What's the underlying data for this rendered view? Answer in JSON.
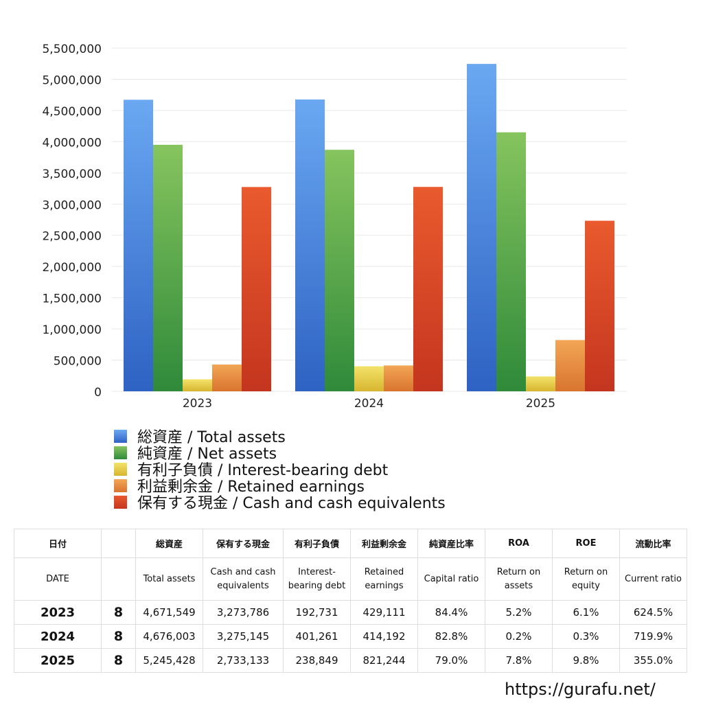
{
  "chart_data": {
    "type": "bar",
    "categories": [
      "2023",
      "2024",
      "2025"
    ],
    "series": [
      {
        "name": "総資産 / Total assets",
        "values": [
          4671549,
          4676003,
          5245428
        ],
        "color_top": "#6aa8f2",
        "color_bottom": "#2e62c3"
      },
      {
        "name": "純資産 / Net assets",
        "values": [
          3950000,
          3870000,
          4150000
        ],
        "color_top": "#86c45e",
        "color_bottom": "#2f8a3a"
      },
      {
        "name": "有利子負債 / Interest-bearing debt",
        "values": [
          192731,
          401261,
          238849
        ],
        "color_top": "#f3e36a",
        "color_bottom": "#d7b52f"
      },
      {
        "name": "利益剰余金 / Retained earnings",
        "values": [
          429111,
          414192,
          821244
        ],
        "color_top": "#f2a655",
        "color_bottom": "#d9742f"
      },
      {
        "name": "保有する現金 /  Cash and cash equivalents",
        "values": [
          3273786,
          3275145,
          2733133
        ],
        "color_top": "#ea5a2e",
        "color_bottom": "#c4351f"
      }
    ],
    "yticks": [
      "5,500,000",
      "5,000,000",
      "4,500,000",
      "4,000,000",
      "3,500,000",
      "3,000,000",
      "2,500,000",
      "2,000,000",
      "1,500,000",
      "1,000,000",
      "500,000",
      "0"
    ],
    "ylim": [
      0,
      5500000
    ],
    "grid": true,
    "legend_position": "bottom-left"
  },
  "table": {
    "header_jp": [
      "日付",
      "",
      "総資産",
      "保有する現金",
      "有利子負債",
      "利益剰余金",
      "純資産比率",
      "ROA",
      "ROE",
      "流動比率"
    ],
    "header_en": [
      "DATE",
      "",
      "Total assets",
      "Cash and cash equivalents",
      "Interest-bearing debt",
      "Retained earnings",
      "Capital ratio",
      "Return on assets",
      "Return on equity",
      "Current ratio"
    ],
    "rows": [
      [
        "2023",
        "8",
        "4,671,549",
        "3,273,786",
        "192,731",
        "429,111",
        "84.4%",
        "5.2%",
        "6.1%",
        "624.5%"
      ],
      [
        "2024",
        "8",
        "4,676,003",
        "3,275,145",
        "401,261",
        "414,192",
        "82.8%",
        "0.2%",
        "0.3%",
        "719.9%"
      ],
      [
        "2025",
        "8",
        "5,245,428",
        "2,733,133",
        "238,849",
        "821,244",
        "79.0%",
        "7.8%",
        "9.8%",
        "355.0%"
      ]
    ]
  },
  "footer": {
    "url": "https://gurafu.net/"
  }
}
